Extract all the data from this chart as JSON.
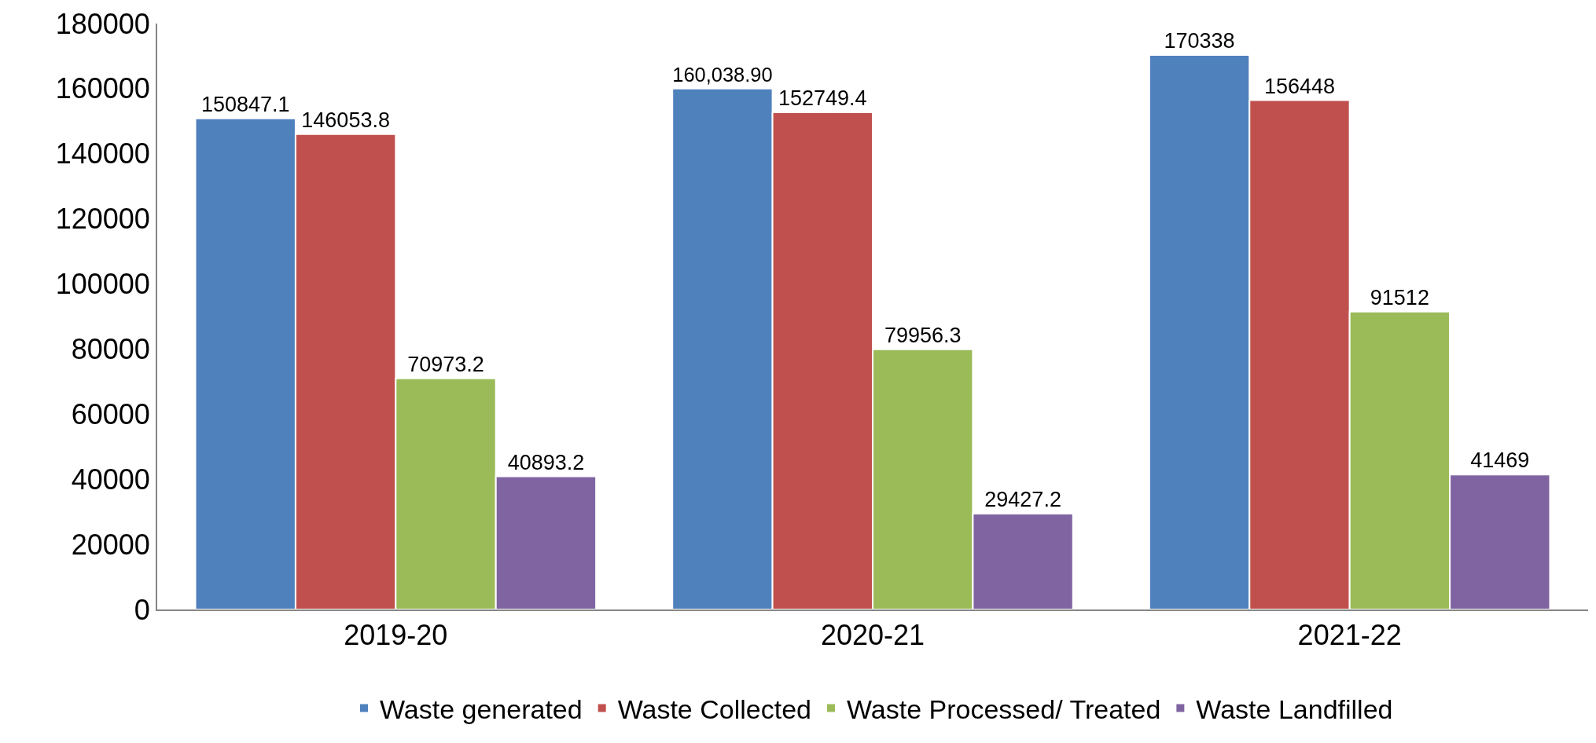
{
  "chart_data": {
    "type": "bar",
    "categories": [
      "2019-20",
      "2020-21",
      "2021-22"
    ],
    "series": [
      {
        "name": "Waste generated",
        "color": "#4f81bd",
        "values": [
          150847.1,
          160038.9,
          170338
        ],
        "value_labels": [
          "150847.1",
          "160,038.90",
          "170338"
        ]
      },
      {
        "name": "Waste Collected",
        "color": "#c0504d",
        "values": [
          146053.8,
          152749.4,
          156448
        ],
        "value_labels": [
          "146053.8",
          "152749.4",
          "156448"
        ]
      },
      {
        "name": "Waste Processed/ Treated",
        "color": "#9bbb59",
        "values": [
          70973.2,
          79956.3,
          91512
        ],
        "value_labels": [
          "70973.2",
          "79956.3",
          "91512"
        ]
      },
      {
        "name": "Waste Landfilled",
        "color": "#8064a2",
        "values": [
          40893.2,
          29427.2,
          41469
        ],
        "value_labels": [
          "40893.2",
          "29427.2",
          "41469"
        ]
      }
    ],
    "ylim": [
      0,
      180000
    ],
    "yticks": [
      0,
      20000,
      40000,
      60000,
      80000,
      100000,
      120000,
      140000,
      160000,
      180000
    ],
    "legend": "bottom"
  }
}
